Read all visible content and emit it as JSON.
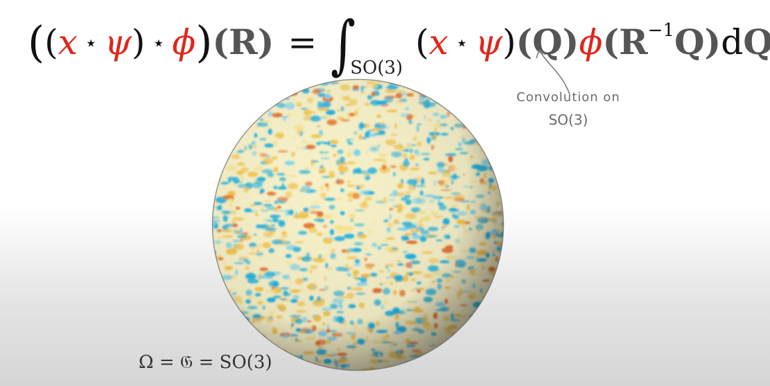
{
  "formula": {
    "open_outer": "(",
    "open_inner": "(",
    "x": "x",
    "star1": "⋆",
    "psi": "ψ",
    "close_inner": ")",
    "star2": "⋆",
    "phi": "ϕ",
    "close_outer": ")",
    "R_arg": "(R)",
    "equals": "=",
    "integral": "∫",
    "integral_subscript": "SO(3)",
    "rhs_open": "(",
    "rhs_x": "x",
    "rhs_star": "⋆",
    "rhs_psi": "ψ",
    "rhs_close": ")",
    "rhs_Q": "(Q)",
    "rhs_phi": "ϕ",
    "rhs_paren_R": "(R",
    "rhs_superscript": "−1",
    "rhs_Q_close": "Q)",
    "rhs_d": "d",
    "rhs_dQ": "Q"
  },
  "annotation": {
    "line1": "Convolution on",
    "line2": "SO(3)"
  },
  "group_label": "Ω = 𝔊 = SO(3)",
  "colors": {
    "accent_red": "#e0261c",
    "annotation_gray": "#6b6b6b",
    "sphere_blue": "#1fb0e0",
    "sphere_yellow": "#f2c24a",
    "sphere_orange": "#e2702c"
  },
  "icons": {
    "annotation_arrow": "curved-arrow-icon",
    "sphere": "cmb-sphere"
  }
}
